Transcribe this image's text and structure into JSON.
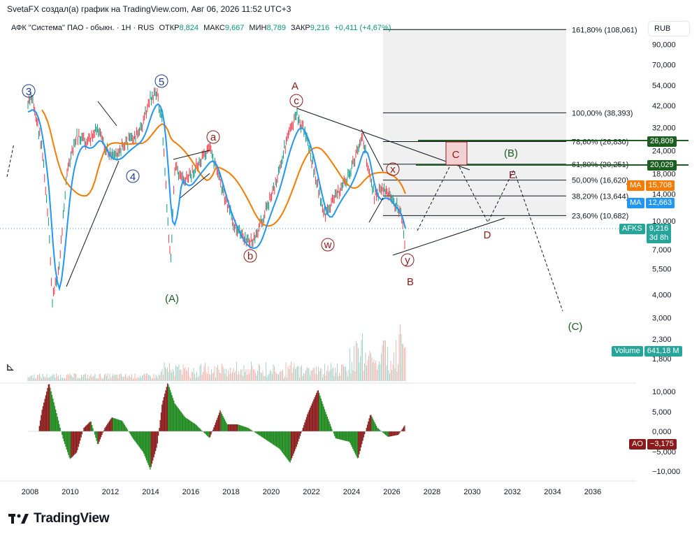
{
  "header": {
    "title": "SvetaFX создал(а) график на TradingView.com, Авг 06, 2026 11:52 UTC+3"
  },
  "legend": {
    "symbol": "АФК \"Система\" ПАО - обыкн. · 1H · RUS",
    "open_label": "ОТКР",
    "open": "8,824",
    "high_label": "МАКС",
    "high": "9,667",
    "low_label": "МИН",
    "low": "8,789",
    "close_label": "ЗАКР",
    "close": "9,216",
    "change": "+0,411 (+4,67%)"
  },
  "currency_button": "RUB",
  "price_scale": {
    "ticks": [
      {
        "v": "90,000",
        "p": 90000
      },
      {
        "v": "70,000",
        "p": 70000
      },
      {
        "v": "54,000",
        "p": 54000
      },
      {
        "v": "42,000",
        "p": 42000
      },
      {
        "v": "32,000",
        "p": 32000
      },
      {
        "v": "24,000",
        "p": 24000
      },
      {
        "v": "18,000",
        "p": 18000
      },
      {
        "v": "14,000",
        "p": 14000
      },
      {
        "v": "10,000",
        "p": 10000
      },
      {
        "v": "7,000",
        "p": 7000
      },
      {
        "v": "5,500",
        "p": 5500
      },
      {
        "v": "4,000",
        "p": 4000
      },
      {
        "v": "3,000",
        "p": 3000
      },
      {
        "v": "2,300",
        "p": 2300
      },
      {
        "v": "1,800",
        "p": 1800
      }
    ]
  },
  "ao_scale": {
    "ticks": [
      "10,000",
      "5,000",
      "0,000",
      "−5,000",
      "−10,000"
    ]
  },
  "time_scale": {
    "ticks": [
      "2008",
      "2010",
      "2012",
      "2014",
      "2016",
      "2018",
      "2020",
      "2022",
      "2024",
      "2026",
      "2028",
      "2030",
      "2032",
      "2034",
      "2036"
    ]
  },
  "fib_levels": [
    {
      "label": "161,80% (108,061)",
      "price": 108061
    },
    {
      "label": "100,00% (38,393)",
      "price": 38393
    },
    {
      "label": "78,60% (26,830)",
      "price": 26830
    },
    {
      "label": "61,80% (20,251)",
      "price": 20251
    },
    {
      "label": "50,00% (16,620)",
      "price": 16620
    },
    {
      "label": "38,20% (13,644)",
      "price": 13644
    },
    {
      "label": "23,60% (10,682)",
      "price": 10682
    }
  ],
  "badges": {
    "level_1": {
      "text": "26,809",
      "color": "#1b5e20"
    },
    "level_2": {
      "text": "20,029",
      "color": "#1b5e20"
    },
    "ma1_label": "MA",
    "ma1_value": "15,708",
    "ma1_color": "#f57c00",
    "ma2_label": "MA",
    "ma2_value": "12,663",
    "ma2_color": "#2196f3",
    "symbol_label": "AFKS",
    "symbol_price": "9,216",
    "symbol_countdown": "3d 8h",
    "symbol_color": "#26a69a",
    "volume_label": "Volume",
    "volume_value": "641,18 M",
    "volume_color": "#26a69a",
    "ao_label": "AO",
    "ao_value": "−3,175",
    "ao_color": "#8b1a1a"
  },
  "wave_labels": {
    "w3": "3",
    "w5": "5",
    "w4": "4",
    "A_big": "(A)",
    "B_big": "(B)",
    "C_big": "(C)",
    "a": "a",
    "b": "b",
    "c": "c",
    "w": "w",
    "x": "x",
    "y": "y",
    "A": "A",
    "B": "B",
    "C": "C",
    "D": "D",
    "E": "E"
  },
  "colors": {
    "up": "#089981",
    "down": "#f23645",
    "ma_orange": "#f57c00",
    "ma_blue": "#2196f3",
    "wave_red": "#8b1a1a",
    "wave_green": "#1b5e20",
    "wave_blue": "#1a3a8a"
  },
  "footer": {
    "brand": "TradingView"
  }
}
